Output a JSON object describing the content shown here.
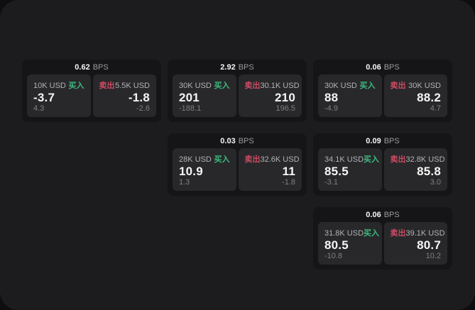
{
  "labels": {
    "buy": "买入",
    "sell": "卖出",
    "bps_unit": "BPS"
  },
  "colors": {
    "backdrop": "#0e0e0e",
    "panel": "#1c1c1e",
    "card": "#151517",
    "tile": "#28282a",
    "text": "#f5f5f5",
    "muted": "#9b9b9e",
    "dim": "#808084",
    "buy": "#3dba7f",
    "sell": "#cd4a63"
  },
  "cards": [
    {
      "col": 1,
      "row": 1,
      "bps": "0.62",
      "buy": {
        "amount": "10K USD",
        "value": "-3.7",
        "change": "4.3"
      },
      "sell": {
        "amount": "5.5K USD",
        "value": "-1.8",
        "change": "-2.6"
      }
    },
    {
      "col": 2,
      "row": 1,
      "bps": "2.92",
      "buy": {
        "amount": "30K USD",
        "value": "201",
        "change": "-188.1"
      },
      "sell": {
        "amount": "30.1K USD",
        "value": "210",
        "change": "196.5"
      }
    },
    {
      "col": 3,
      "row": 1,
      "bps": "0.06",
      "buy": {
        "amount": "30K USD",
        "value": "88",
        "change": "-4.9"
      },
      "sell": {
        "amount": "30K USD",
        "value": "88.2",
        "change": "4.7"
      }
    },
    {
      "col": 2,
      "row": 2,
      "bps": "0.03",
      "buy": {
        "amount": "28K USD",
        "value": "10.9",
        "change": "1.3"
      },
      "sell": {
        "amount": "32.6K USD",
        "value": "11",
        "change": "-1.8"
      }
    },
    {
      "col": 3,
      "row": 2,
      "bps": "0.09",
      "buy": {
        "amount": "34.1K USD",
        "value": "85.5",
        "change": "-3.1"
      },
      "sell": {
        "amount": "32.8K USD",
        "value": "85.8",
        "change": "3.0"
      }
    },
    {
      "col": 3,
      "row": 3,
      "bps": "0.06",
      "buy": {
        "amount": "31.8K USD",
        "value": "80.5",
        "change": "-10.8"
      },
      "sell": {
        "amount": "39.1K USD",
        "value": "80.7",
        "change": "10.2"
      }
    }
  ]
}
